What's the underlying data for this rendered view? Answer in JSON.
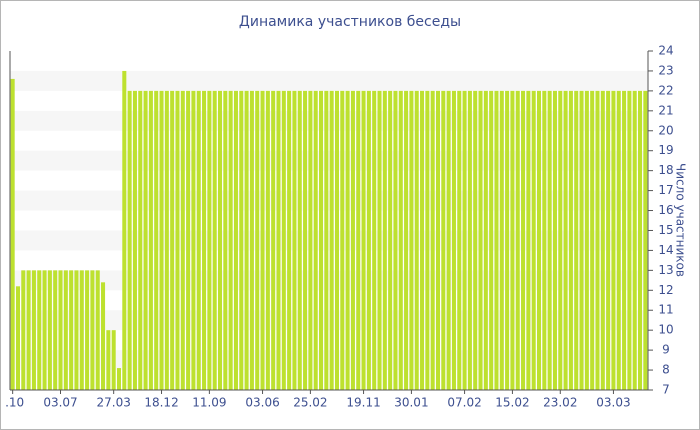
{
  "chart_data": {
    "type": "bar",
    "title": "Динамика участников беседы",
    "y_label": "Число участников",
    "color": "#bde12f",
    "ylim": [
      7,
      24
    ],
    "yticks": [
      7,
      8,
      9,
      10,
      11,
      12,
      13,
      14,
      15,
      16,
      17,
      18,
      19,
      20,
      21,
      22,
      23,
      24
    ],
    "grid": "bands",
    "y_axis_side": "right",
    "categories": [
      ".10",
      null,
      null,
      null,
      null,
      null,
      null,
      null,
      null,
      "03.07",
      null,
      null,
      null,
      null,
      null,
      null,
      null,
      null,
      null,
      "27.03",
      null,
      null,
      null,
      null,
      null,
      null,
      null,
      null,
      "18.12",
      null,
      null,
      null,
      null,
      null,
      null,
      null,
      null,
      "11.09",
      null,
      null,
      null,
      null,
      null,
      null,
      null,
      null,
      null,
      "03.06",
      null,
      null,
      null,
      null,
      null,
      null,
      null,
      null,
      "25.02",
      null,
      null,
      null,
      null,
      null,
      null,
      null,
      null,
      null,
      "19.11",
      null,
      null,
      null,
      null,
      null,
      null,
      null,
      null,
      "30.01",
      null,
      null,
      null,
      null,
      null,
      null,
      null,
      null,
      null,
      "07.02",
      null,
      null,
      null,
      null,
      null,
      null,
      null,
      null,
      "15.02",
      null,
      null,
      null,
      null,
      null,
      null,
      null,
      null,
      "23.02",
      null,
      null,
      null,
      null,
      null,
      null,
      null,
      null,
      null,
      "03.03",
      null,
      null,
      null,
      null,
      null,
      null
    ],
    "values": [
      22.6,
      12.2,
      13,
      13,
      13,
      13,
      13,
      13,
      13,
      13,
      13,
      13,
      13,
      13,
      13,
      13,
      13,
      12.4,
      10,
      10,
      8.1,
      23,
      22,
      22,
      22,
      22,
      22,
      22,
      22,
      22,
      22,
      22,
      22,
      22,
      22,
      22,
      22,
      22,
      22,
      22,
      22,
      22,
      22,
      22,
      22,
      22,
      22,
      22,
      22,
      22,
      22,
      22,
      22,
      22,
      22,
      22,
      22,
      22,
      22,
      22,
      22,
      22,
      22,
      22,
      22,
      22,
      22,
      22,
      22,
      22,
      22,
      22,
      22,
      22,
      22,
      22,
      22,
      22,
      22,
      22,
      22,
      22,
      22,
      22,
      22,
      22,
      22,
      22,
      22,
      22,
      22,
      22,
      22,
      22,
      22,
      22,
      22,
      22,
      22,
      22,
      22,
      22,
      22,
      22,
      22,
      22,
      22,
      22,
      22,
      22,
      22,
      22,
      22,
      22,
      22,
      22,
      22,
      22,
      22,
      22
    ]
  }
}
